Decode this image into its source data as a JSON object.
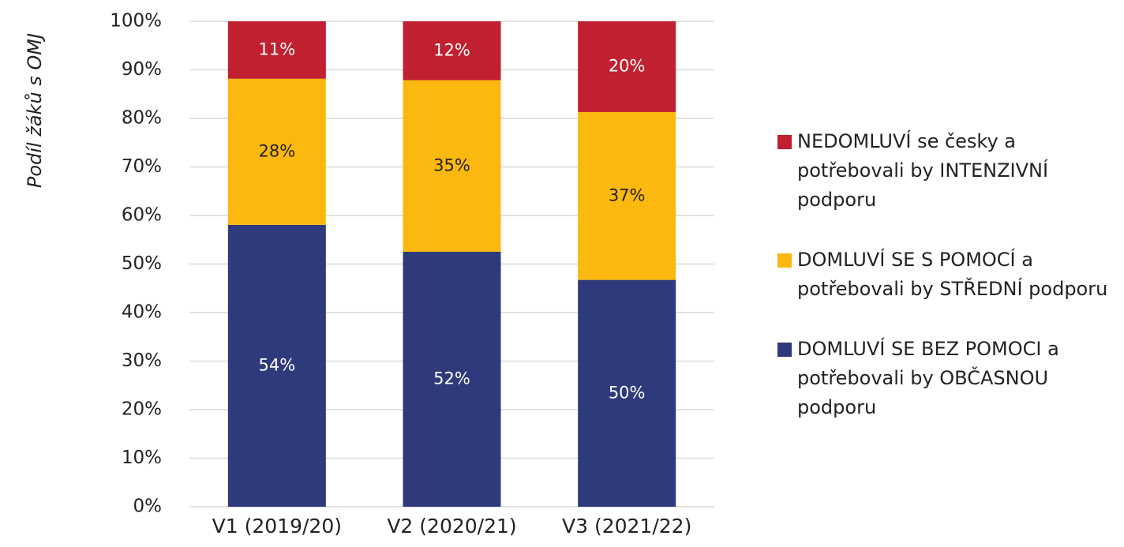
{
  "chart_data": {
    "type": "bar",
    "stacking": "percent",
    "y_axis_label": "Podíl žáků s OMJ",
    "categories": [
      "V1 (2019/20)",
      "V2 (2020/21)",
      "V3 (2021/22)"
    ],
    "series": [
      {
        "name": "DOMLUVÍ SE BEZ POMOCI a potřebovali by OBČASNOU podporu",
        "color": "#2e3a7b",
        "label_color": "#ffffff",
        "values": [
          54,
          52,
          50
        ],
        "value_labels": [
          "54%",
          "52%",
          "50%"
        ]
      },
      {
        "name": "DOMLUVÍ SE S POMOCÍ a potřebovali by STŘEDNÍ podporu",
        "color": "#fbb80f",
        "label_color": "#222222",
        "values": [
          28,
          35,
          37
        ],
        "value_labels": [
          "28%",
          "35%",
          "37%"
        ]
      },
      {
        "name": "NEDOMLUVÍ se česky a potřebovali by INTENZIVNÍ podporu",
        "color": "#c0202f",
        "label_color": "#ffffff",
        "values": [
          11,
          12,
          20
        ],
        "value_labels": [
          "11%",
          "12%",
          "20%"
        ]
      }
    ],
    "ylim": [
      0,
      100
    ],
    "yticks": [
      {
        "value": 0,
        "label": "0%"
      },
      {
        "value": 10,
        "label": "10%"
      },
      {
        "value": 20,
        "label": "20%"
      },
      {
        "value": 30,
        "label": "30%"
      },
      {
        "value": 40,
        "label": "40%"
      },
      {
        "value": 50,
        "label": "50%"
      },
      {
        "value": 60,
        "label": "60%"
      },
      {
        "value": 70,
        "label": "70%"
      },
      {
        "value": 80,
        "label": "80%"
      },
      {
        "value": 90,
        "label": "90%"
      },
      {
        "value": 100,
        "label": "100%"
      }
    ],
    "grid": true,
    "legend": "right"
  }
}
